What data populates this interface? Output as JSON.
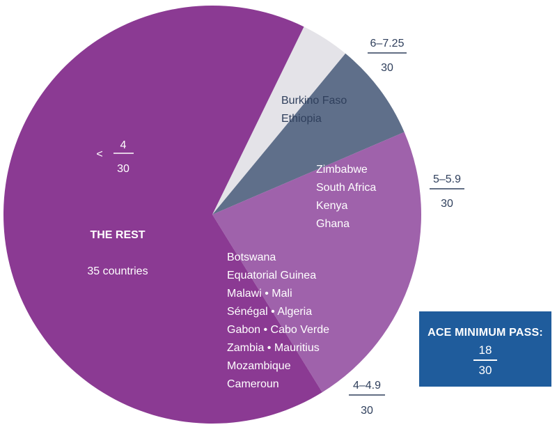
{
  "chart_data": {
    "type": "pie",
    "colors": {
      "the_rest": "#8b3a93",
      "band_4_4_9": "#9f62ab",
      "band_5_5_9": "#5f6f8a",
      "band_6_7_25": "#e4e3e8",
      "text_dark": "#2f3f5c",
      "box": "#1f5c9c"
    },
    "slices": [
      {
        "id": "band_6_7_25",
        "value": 2,
        "range_label": "6–7.25",
        "denominator": "30",
        "countries": [
          "Burkino Faso",
          "Ethiopia"
        ]
      },
      {
        "id": "band_5_5_9",
        "value": 4,
        "range_label": "5–5.9",
        "denominator": "30",
        "countries": [
          "Zimbabwe",
          "South Africa",
          "Kenya",
          "Ghana"
        ]
      },
      {
        "id": "band_4_4_9",
        "value": 12,
        "range_label": "4–4.9",
        "denominator": "30",
        "countries": [
          "Botswana",
          "Equatorial Guinea",
          "Malawi • Mali",
          "Sénégal • Algeria",
          "Gabon • Cabo Verde",
          "Zambia • Mauritius",
          "Mozambique",
          "Cameroun"
        ]
      },
      {
        "id": "the_rest",
        "value": 35,
        "range_prefix": "<",
        "range_label": "4",
        "denominator": "30",
        "title": "THE REST",
        "subtitle": "35 countries"
      }
    ],
    "ace_box": {
      "title": "ACE MINIMUM PASS:",
      "numerator": "18",
      "denominator": "30"
    }
  }
}
